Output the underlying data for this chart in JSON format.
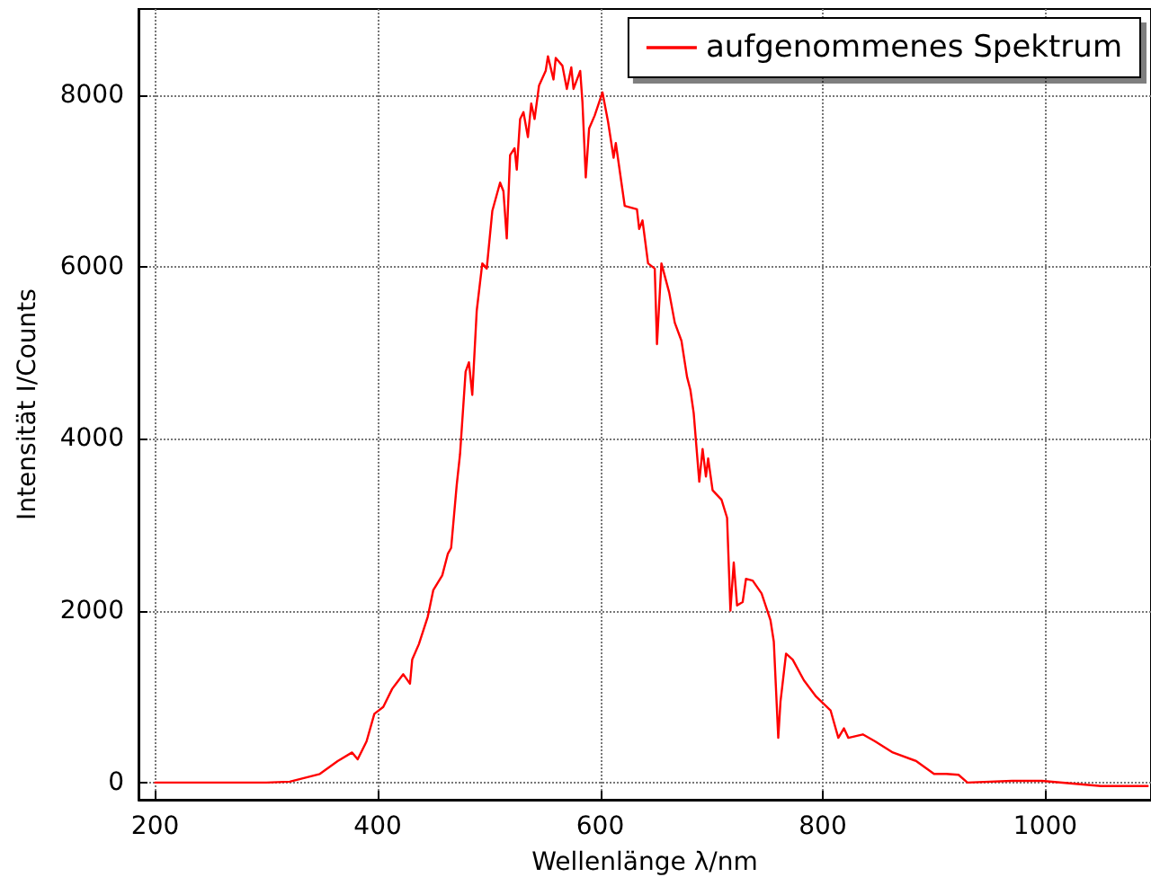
{
  "chart_data": {
    "type": "line",
    "xlabel": "Wellenlänge λ/nm",
    "ylabel": "Intensität I/Counts",
    "xlim": [
      185,
      1095
    ],
    "ylim": [
      -200,
      9000
    ],
    "xticks": [
      200,
      400,
      600,
      800,
      1000
    ],
    "yticks": [
      0,
      2000,
      4000,
      6000,
      8000
    ],
    "grid": true,
    "legend": "top right",
    "marker": "none",
    "line_style": "solid",
    "series": [
      {
        "name": "aufgenommenes Spektrum",
        "color": "#ff0000",
        "x": [
          200,
          250,
          300,
          321,
          348,
          364,
          377,
          382,
          390,
          397,
          405,
          413,
          423,
          429,
          431,
          437,
          445,
          450,
          458,
          463,
          466,
          471,
          474,
          479,
          482,
          485,
          489,
          494,
          498,
          503,
          510,
          513,
          516,
          519,
          523,
          525,
          528,
          531,
          535,
          538,
          541,
          545,
          551,
          553,
          558,
          560,
          566,
          570,
          574,
          576,
          582,
          584,
          587,
          590,
          595,
          602,
          607,
          612,
          614,
          622,
          633,
          635,
          638,
          643,
          649,
          651,
          655,
          662,
          667,
          673,
          678,
          681,
          684,
          689,
          692,
          695,
          697,
          701,
          709,
          714,
          717,
          720,
          723,
          728,
          731,
          737,
          745,
          753,
          756,
          760,
          762,
          767,
          773,
          783,
          794,
          807,
          814,
          819,
          823,
          836,
          847,
          863,
          884,
          900,
          911,
          922,
          930,
          970,
          997,
          1050,
          1092
        ],
        "values": [
          0,
          0,
          0,
          10,
          100,
          250,
          350,
          270,
          480,
          800,
          880,
          1090,
          1260,
          1150,
          1430,
          1610,
          1930,
          2240,
          2410,
          2660,
          2730,
          3460,
          3820,
          4780,
          4890,
          4510,
          5490,
          6040,
          5980,
          6650,
          6980,
          6880,
          6330,
          7300,
          7380,
          7130,
          7720,
          7800,
          7510,
          7900,
          7720,
          8110,
          8280,
          8450,
          8180,
          8430,
          8340,
          8070,
          8320,
          8070,
          8280,
          7920,
          7040,
          7610,
          7760,
          8030,
          7690,
          7270,
          7440,
          6710,
          6670,
          6440,
          6540,
          6040,
          5980,
          5100,
          6040,
          5700,
          5350,
          5140,
          4720,
          4570,
          4300,
          3500,
          3880,
          3560,
          3770,
          3400,
          3290,
          3080,
          2000,
          2560,
          2060,
          2100,
          2370,
          2350,
          2200,
          1890,
          1640,
          520,
          940,
          1500,
          1430,
          1190,
          1000,
          840,
          520,
          630,
          520,
          560,
          480,
          350,
          250,
          100,
          100,
          90,
          0,
          20,
          20,
          -40,
          -40
        ]
      }
    ]
  }
}
